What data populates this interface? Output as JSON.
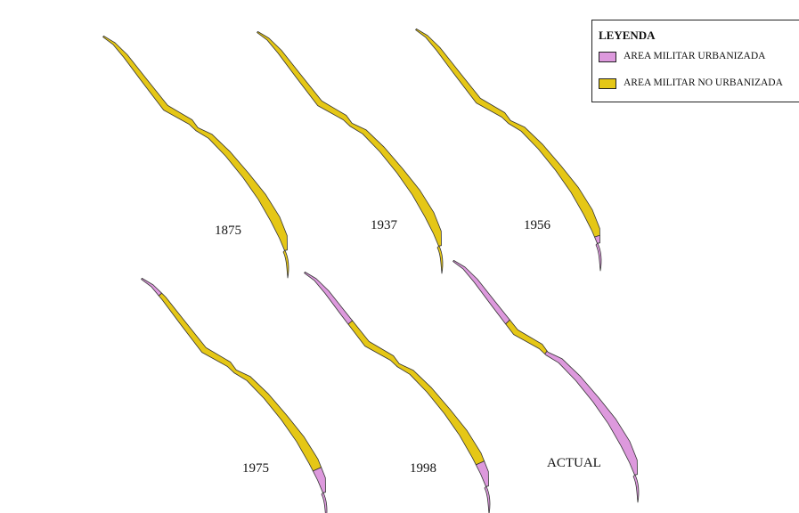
{
  "legend": {
    "title": "LEYENDA",
    "items": [
      {
        "key": "urbanized",
        "label": "AREA MILITAR URBANIZADA",
        "color": "#dd99dd"
      },
      {
        "key": "not_urbanized",
        "label": "AREA MILITAR NO URBANIZADA",
        "color": "#e5c716"
      }
    ]
  },
  "colors": {
    "outline": "#333333"
  },
  "maps": [
    {
      "label": "1875",
      "urbanized_from_start": 0,
      "urbanized_from_end": 0
    },
    {
      "label": "1937",
      "urbanized_from_start": 0,
      "urbanized_from_end": 0
    },
    {
      "label": "1956",
      "urbanized_from_start": 0,
      "urbanized_from_end": 0.04
    },
    {
      "label": "1975",
      "urbanized_from_start": 0.13,
      "urbanized_from_end": 0.12
    },
    {
      "label": "1998",
      "urbanized_from_start": 0.25,
      "urbanized_from_end": 0.12
    },
    {
      "label": "ACTUAL",
      "urbanized_from_start": 0.28,
      "urbanized_from_end": 0.55
    }
  ]
}
